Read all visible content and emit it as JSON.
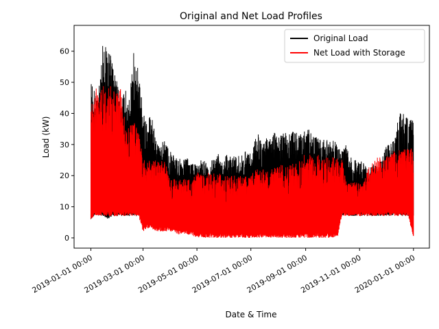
{
  "chart_data": {
    "type": "line",
    "title": "Original and Net Load Profiles",
    "xlabel": "Date & Time",
    "ylabel": "Load (kW)",
    "xlim": [
      "2018-12-13",
      "2020-01-19"
    ],
    "ylim": [
      -3.3,
      68.3
    ],
    "yticks": [
      0,
      10,
      20,
      30,
      40,
      50,
      60
    ],
    "xticks": [
      {
        "date": "2019-01-01",
        "label": "2019-01-01 00:00"
      },
      {
        "date": "2019-03-01",
        "label": "2019-03-01 00:00"
      },
      {
        "date": "2019-05-01",
        "label": "2019-05-01 00:00"
      },
      {
        "date": "2019-07-01",
        "label": "2019-07-01 00:00"
      },
      {
        "date": "2019-09-01",
        "label": "2019-09-01 00:00"
      },
      {
        "date": "2019-11-01",
        "label": "2019-11-01 00:00"
      },
      {
        "date": "2020-01-01",
        "label": "2020-01-01 00:00"
      }
    ],
    "legend_position": "top-right",
    "series": [
      {
        "name": "Original Load",
        "color": "#000000",
        "x": [
          "2019-01-01",
          "2019-01-05",
          "2019-01-10",
          "2019-01-15",
          "2019-01-20",
          "2019-01-25",
          "2019-01-30",
          "2019-02-04",
          "2019-02-09",
          "2019-02-14",
          "2019-02-19",
          "2019-02-24",
          "2019-03-01",
          "2019-03-06",
          "2019-03-11",
          "2019-03-16",
          "2019-03-21",
          "2019-03-26",
          "2019-03-31",
          "2019-04-05",
          "2019-04-10",
          "2019-04-15",
          "2019-04-20",
          "2019-04-25",
          "2019-04-30",
          "2019-05-05",
          "2019-05-10",
          "2019-05-15",
          "2019-05-20",
          "2019-05-25",
          "2019-05-30",
          "2019-06-04",
          "2019-06-09",
          "2019-06-14",
          "2019-06-19",
          "2019-06-24",
          "2019-06-29",
          "2019-07-04",
          "2019-07-09",
          "2019-07-14",
          "2019-07-19",
          "2019-07-24",
          "2019-07-29",
          "2019-08-03",
          "2019-08-08",
          "2019-08-13",
          "2019-08-18",
          "2019-08-23",
          "2019-08-28",
          "2019-09-02",
          "2019-09-07",
          "2019-09-12",
          "2019-09-17",
          "2019-09-22",
          "2019-09-27",
          "2019-10-02",
          "2019-10-07",
          "2019-10-12",
          "2019-10-17",
          "2019-10-22",
          "2019-10-27",
          "2019-11-01",
          "2019-11-06",
          "2019-11-11",
          "2019-11-16",
          "2019-11-21",
          "2019-11-26",
          "2019-12-01",
          "2019-12-06",
          "2019-12-11",
          "2019-12-16",
          "2019-12-21",
          "2019-12-26",
          "2020-01-01"
        ],
        "max": [
          50,
          48,
          48,
          65,
          60,
          58,
          52,
          47,
          48,
          45,
          65,
          56,
          40,
          38,
          40,
          32,
          30,
          32,
          28,
          27,
          26,
          25,
          26,
          24,
          25,
          25,
          25,
          24,
          26,
          27,
          26,
          27,
          26,
          27,
          26,
          28,
          29,
          30,
          34,
          30,
          33,
          32,
          35,
          33,
          34,
          33,
          35,
          34,
          33,
          36,
          34,
          33,
          32,
          33,
          31,
          32,
          30,
          28,
          30,
          26,
          25,
          25,
          24,
          22,
          24,
          23,
          26,
          30,
          30,
          33,
          41,
          40,
          38,
          39
        ],
        "min": [
          6,
          7,
          7,
          7,
          6,
          7,
          7,
          7,
          7,
          7,
          7,
          7,
          7,
          7,
          7,
          7,
          7,
          7,
          7,
          7,
          7,
          7,
          7,
          7,
          7,
          7,
          7,
          7,
          7,
          7,
          7,
          7,
          7,
          7,
          7,
          7,
          7,
          7,
          7,
          7,
          7,
          7,
          7,
          7,
          7,
          7,
          7,
          7,
          7,
          7,
          7,
          7,
          7,
          7,
          7,
          7,
          7,
          7,
          7,
          7,
          7,
          7,
          7,
          7,
          7,
          7,
          7,
          7,
          7,
          7,
          7,
          7,
          7,
          7
        ]
      },
      {
        "name": "Net Load with Storage",
        "color": "#ff0000",
        "x": [
          "2019-01-01",
          "2019-01-05",
          "2019-01-10",
          "2019-01-15",
          "2019-01-20",
          "2019-01-25",
          "2019-01-30",
          "2019-02-04",
          "2019-02-09",
          "2019-02-14",
          "2019-02-19",
          "2019-02-24",
          "2019-03-01",
          "2019-03-06",
          "2019-03-11",
          "2019-03-16",
          "2019-03-21",
          "2019-03-26",
          "2019-03-31",
          "2019-04-05",
          "2019-04-10",
          "2019-04-15",
          "2019-04-20",
          "2019-04-25",
          "2019-04-30",
          "2019-05-05",
          "2019-05-10",
          "2019-05-15",
          "2019-05-20",
          "2019-05-25",
          "2019-05-30",
          "2019-06-04",
          "2019-06-09",
          "2019-06-14",
          "2019-06-19",
          "2019-06-24",
          "2019-06-29",
          "2019-07-04",
          "2019-07-09",
          "2019-07-14",
          "2019-07-19",
          "2019-07-24",
          "2019-07-29",
          "2019-08-03",
          "2019-08-08",
          "2019-08-13",
          "2019-08-18",
          "2019-08-23",
          "2019-08-28",
          "2019-09-02",
          "2019-09-07",
          "2019-09-12",
          "2019-09-17",
          "2019-09-22",
          "2019-09-27",
          "2019-10-02",
          "2019-10-07",
          "2019-10-12",
          "2019-10-17",
          "2019-10-22",
          "2019-10-27",
          "2019-11-01",
          "2019-11-06",
          "2019-11-11",
          "2019-11-16",
          "2019-11-21",
          "2019-11-26",
          "2019-12-01",
          "2019-12-06",
          "2019-12-11",
          "2019-12-16",
          "2019-12-21",
          "2019-12-26",
          "2020-01-01"
        ],
        "max": [
          48,
          48,
          48,
          49,
          49,
          49,
          49,
          48,
          37,
          37,
          37,
          37,
          25,
          25,
          25,
          25,
          25,
          25,
          19,
          19,
          19,
          19,
          19,
          19,
          21,
          21,
          21,
          21,
          21,
          21,
          21,
          20,
          20,
          20,
          20,
          20,
          20,
          22,
          22,
          22,
          22,
          22,
          24,
          24,
          24,
          24,
          24,
          24,
          27,
          27,
          27,
          27,
          27,
          26,
          26,
          26,
          26,
          26,
          18,
          18,
          18,
          18,
          18,
          24,
          24,
          26,
          26,
          26,
          27,
          29,
          29,
          29,
          29,
          29
        ],
        "min": [
          6,
          7,
          7,
          7,
          7,
          7,
          7,
          7,
          7,
          7,
          7,
          7,
          2,
          3,
          3,
          2,
          2,
          2,
          2,
          2,
          1,
          1,
          1,
          1,
          0,
          0,
          0,
          0,
          0,
          0,
          0,
          0,
          0,
          0,
          0,
          0,
          0,
          0,
          0,
          0,
          0,
          0,
          0,
          0,
          0,
          0,
          0,
          0,
          0,
          0,
          0,
          0,
          0,
          0,
          0,
          0,
          0,
          7,
          7,
          7,
          7,
          7,
          7,
          7,
          7,
          7,
          7,
          7,
          7,
          7,
          7,
          7,
          7,
          0
        ]
      }
    ]
  }
}
